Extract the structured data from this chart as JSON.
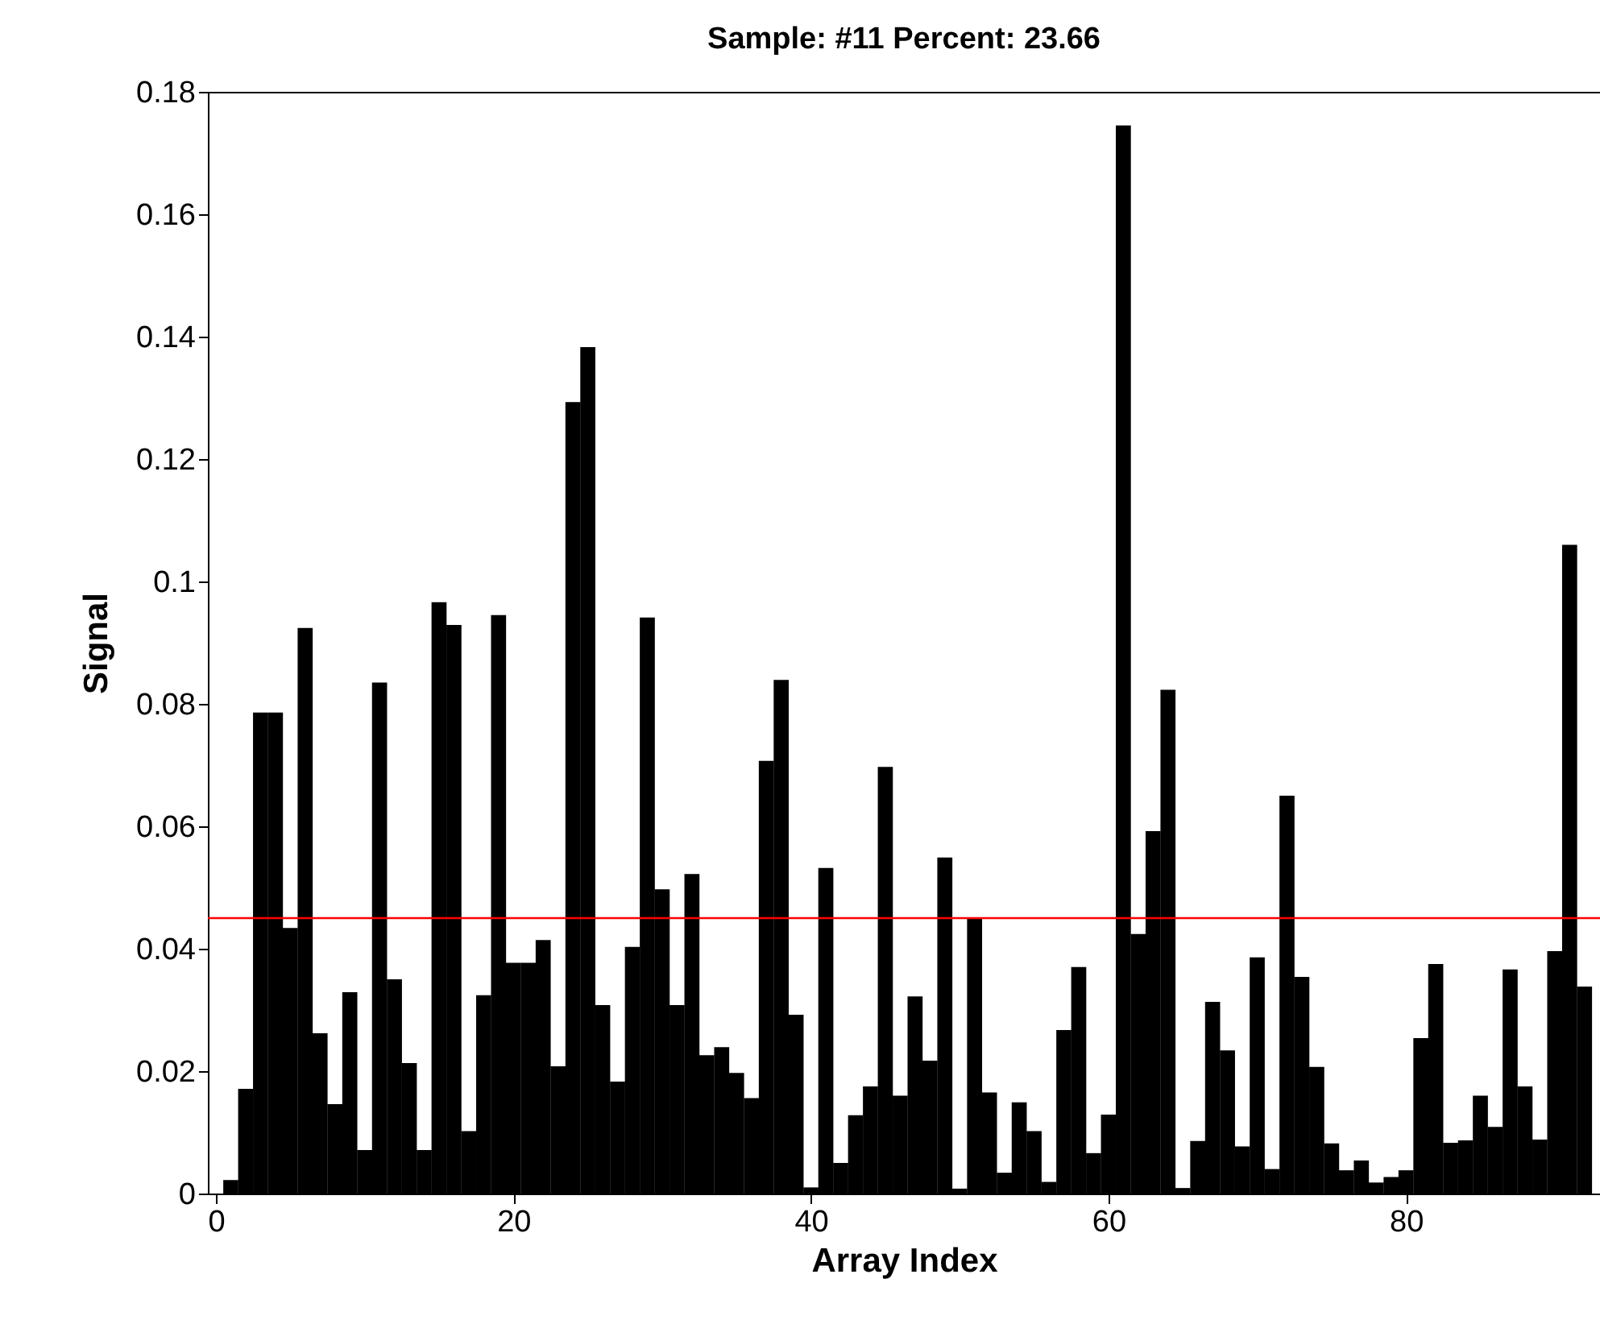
{
  "chart_data": {
    "type": "bar",
    "title": "Sample: #11   Percent: 23.66",
    "xlabel": "Array Index",
    "ylabel": "Signal",
    "x": [
      1,
      2,
      3,
      4,
      5,
      6,
      7,
      8,
      9,
      10,
      11,
      12,
      13,
      14,
      15,
      16,
      17,
      18,
      19,
      20,
      21,
      22,
      23,
      24,
      25,
      26,
      27,
      28,
      29,
      30,
      31,
      32,
      33,
      34,
      35,
      36,
      37,
      38,
      39,
      40,
      41,
      42,
      43,
      44,
      45,
      46,
      47,
      48,
      49,
      50,
      51,
      52,
      53,
      54,
      55,
      56,
      57,
      58,
      59,
      60,
      61,
      62,
      63,
      64,
      65,
      66,
      67,
      68,
      69,
      70,
      71,
      72,
      73,
      74,
      75,
      76,
      77,
      78,
      79,
      80,
      81,
      82,
      83,
      84,
      85,
      86,
      87,
      88,
      89,
      90,
      91,
      92
    ],
    "values": [
      0.0022,
      0.0171,
      0.0786,
      0.0786,
      0.0434,
      0.0924,
      0.0262,
      0.0146,
      0.0329,
      0.0071,
      0.0835,
      0.035,
      0.0213,
      0.0071,
      0.0966,
      0.0929,
      0.0102,
      0.0324,
      0.0945,
      0.0377,
      0.0377,
      0.0414,
      0.0208,
      0.1293,
      0.1383,
      0.0308,
      0.0183,
      0.0403,
      0.0941,
      0.0497,
      0.0308,
      0.0522,
      0.0226,
      0.0239,
      0.0197,
      0.0156,
      0.0707,
      0.0839,
      0.0292,
      0.001,
      0.0532,
      0.005,
      0.0128,
      0.0175,
      0.0697,
      0.016,
      0.0322,
      0.0217,
      0.0549,
      0.0008,
      0.0449,
      0.0165,
      0.0034,
      0.0149,
      0.0102,
      0.0019,
      0.0267,
      0.037,
      0.0066,
      0.0129,
      0.1745,
      0.0424,
      0.0592,
      0.0823,
      0.0009,
      0.0086,
      0.0313,
      0.0234,
      0.0077,
      0.0386,
      0.004,
      0.065,
      0.0354,
      0.0207,
      0.0082,
      0.0038,
      0.0054,
      0.0018,
      0.0027,
      0.0038,
      0.0254,
      0.0375,
      0.0083,
      0.0087,
      0.016,
      0.0109,
      0.0366,
      0.0175,
      0.0088,
      0.0396,
      0.106,
      0.0338
    ],
    "color": "#000000",
    "xlim": [
      0,
      92.5
    ],
    "xticks": [
      0,
      20,
      40,
      60,
      80
    ],
    "ylim": [
      0,
      0.18
    ],
    "yticks": [
      0,
      0.02,
      0.04,
      0.06,
      0.08,
      0.1,
      0.12,
      0.14,
      0.16,
      0.18
    ],
    "ref_lines": [
      {
        "axis": "y",
        "value": 0.045,
        "color": "#ff0000"
      }
    ]
  }
}
